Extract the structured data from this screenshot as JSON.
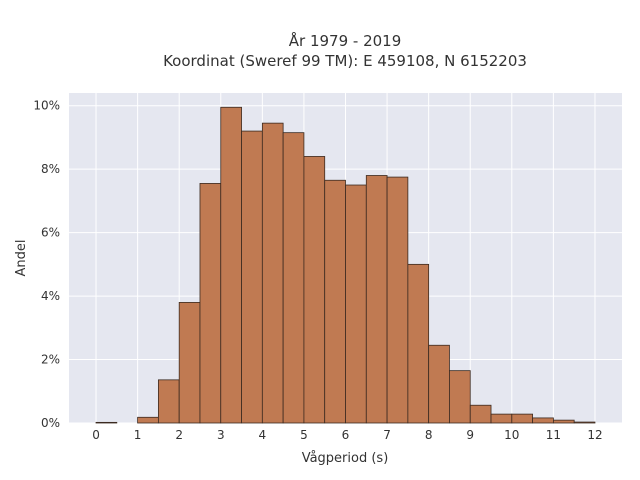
{
  "chart_data": {
    "type": "bar",
    "title_lines": [
      "År 1979 - 2019",
      "Koordinat (Sweref 99 TM): E 459108, N 6152203"
    ],
    "xlabel": "Vågperiod (s)",
    "ylabel": "Andel",
    "xlim": [
      -0.65,
      12.65
    ],
    "ylim": [
      0,
      0.104
    ],
    "x_ticks": [
      0,
      1,
      2,
      3,
      4,
      5,
      6,
      7,
      8,
      9,
      10,
      11,
      12
    ],
    "y_ticks": [
      0,
      0.02,
      0.04,
      0.06,
      0.08,
      0.1
    ],
    "y_tick_labels": [
      "0%",
      "2%",
      "4%",
      "6%",
      "8%",
      "10%"
    ],
    "bin_width": 0.5,
    "bins": [
      {
        "start": 0.0,
        "value": 0.0002
      },
      {
        "start": 0.5,
        "value": 0.0
      },
      {
        "start": 1.0,
        "value": 0.0018
      },
      {
        "start": 1.5,
        "value": 0.0136
      },
      {
        "start": 2.0,
        "value": 0.038
      },
      {
        "start": 2.5,
        "value": 0.0755
      },
      {
        "start": 3.0,
        "value": 0.0995
      },
      {
        "start": 3.5,
        "value": 0.092
      },
      {
        "start": 4.0,
        "value": 0.0945
      },
      {
        "start": 4.5,
        "value": 0.0915
      },
      {
        "start": 5.0,
        "value": 0.084
      },
      {
        "start": 5.5,
        "value": 0.0765
      },
      {
        "start": 6.0,
        "value": 0.075
      },
      {
        "start": 6.5,
        "value": 0.078
      },
      {
        "start": 7.0,
        "value": 0.0775
      },
      {
        "start": 7.5,
        "value": 0.05
      },
      {
        "start": 8.0,
        "value": 0.0245
      },
      {
        "start": 8.5,
        "value": 0.0165
      },
      {
        "start": 9.0,
        "value": 0.0056
      },
      {
        "start": 9.5,
        "value": 0.0028
      },
      {
        "start": 10.0,
        "value": 0.0028
      },
      {
        "start": 10.5,
        "value": 0.0016
      },
      {
        "start": 11.0,
        "value": 0.0009
      },
      {
        "start": 11.5,
        "value": 0.0003
      }
    ],
    "grid": true,
    "colors": {
      "bar_fill": "#c07a52",
      "bar_edge": "#3b2a20",
      "plot_background": "#e5e7f0",
      "grid": "#ffffff",
      "text": "#333333"
    }
  }
}
